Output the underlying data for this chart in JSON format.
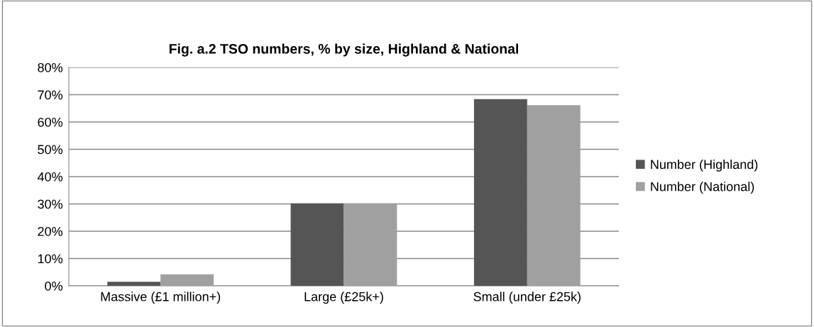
{
  "chart_data": {
    "type": "bar",
    "title": "Fig. a.2 TSO numbers, % by size, Highland & National",
    "categories": [
      "Massive (£1 million+)",
      "Large (£25k+)",
      "Small (under £25k)"
    ],
    "series": [
      {
        "name": "Number (Highland)",
        "color": "#555555",
        "values": [
          1.5,
          30.2,
          68.4
        ]
      },
      {
        "name": "Number (National)",
        "color": "#a0a0a0",
        "values": [
          4.2,
          30.2,
          66.2
        ]
      }
    ],
    "ylim": [
      0,
      80
    ],
    "yticks": [
      {
        "value": 0,
        "label": "0%"
      },
      {
        "value": 10,
        "label": "10%"
      },
      {
        "value": 20,
        "label": "20%"
      },
      {
        "value": 30,
        "label": "30%"
      },
      {
        "value": 40,
        "label": "40%"
      },
      {
        "value": 50,
        "label": "50%"
      },
      {
        "value": 60,
        "label": "60%"
      },
      {
        "value": 70,
        "label": "70%"
      },
      {
        "value": 80,
        "label": "80%"
      }
    ],
    "grid": "y",
    "legend": "right"
  }
}
